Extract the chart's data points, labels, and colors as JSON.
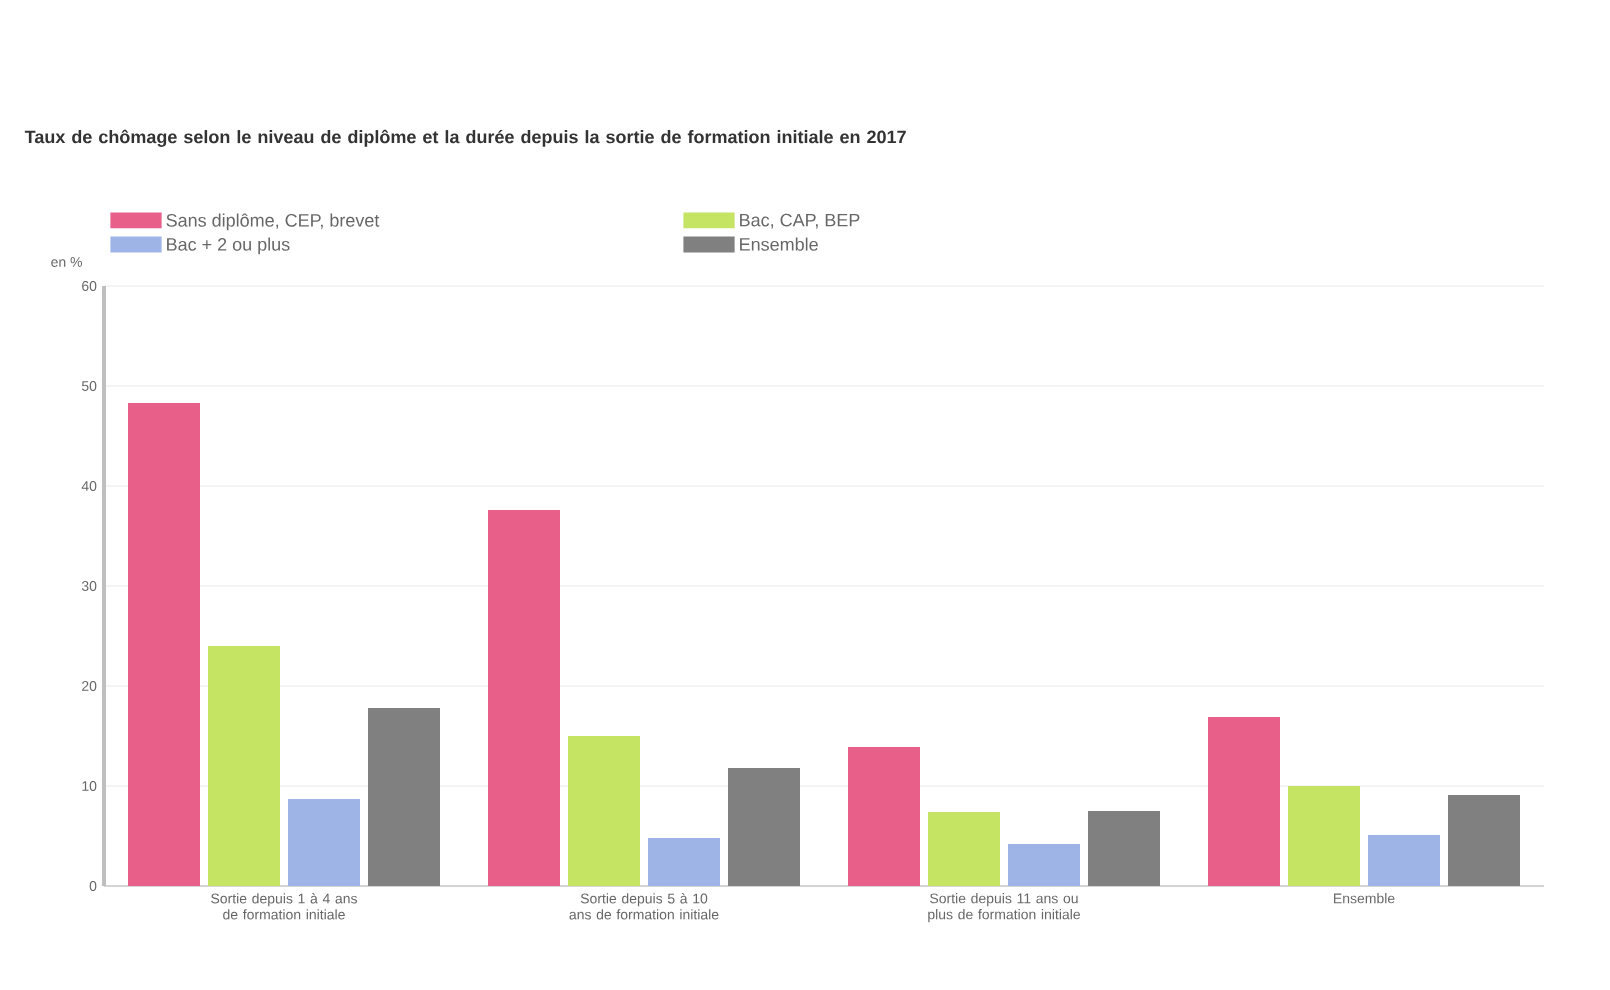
{
  "chart_data": {
    "type": "bar",
    "title": "Taux de chômage selon le niveau de diplôme et la durée depuis la sortie de formation initiale en 2017",
    "ylabel": "en %",
    "categories": [
      "Sortie depuis 1 à 4 ans de formation initiale",
      "Sortie depuis 5 à 10 ans de formation initiale",
      "Sortie depuis 11 ans ou plus de formation initiale",
      "Ensemble"
    ],
    "series": [
      {
        "name": "Sans diplôme, CEP, brevet",
        "color": "#e8608a",
        "values": [
          48.3,
          37.6,
          13.9,
          16.9
        ]
      },
      {
        "name": "Bac, CAP, BEP",
        "color": "#c5e463",
        "values": [
          24,
          15,
          7.4,
          10
        ]
      },
      {
        "name": "Bac + 2 ou plus",
        "color": "#9fb4e6",
        "values": [
          8.7,
          4.8,
          4.2,
          5.1
        ]
      },
      {
        "name": "Ensemble",
        "color": "#808080",
        "values": [
          17.8,
          11.8,
          7.5,
          9.1
        ]
      }
    ],
    "ylim": [
      0,
      60
    ],
    "yticks": [
      0,
      10,
      20,
      30,
      40,
      50,
      60
    ],
    "grid": "y",
    "legend": "top left"
  }
}
